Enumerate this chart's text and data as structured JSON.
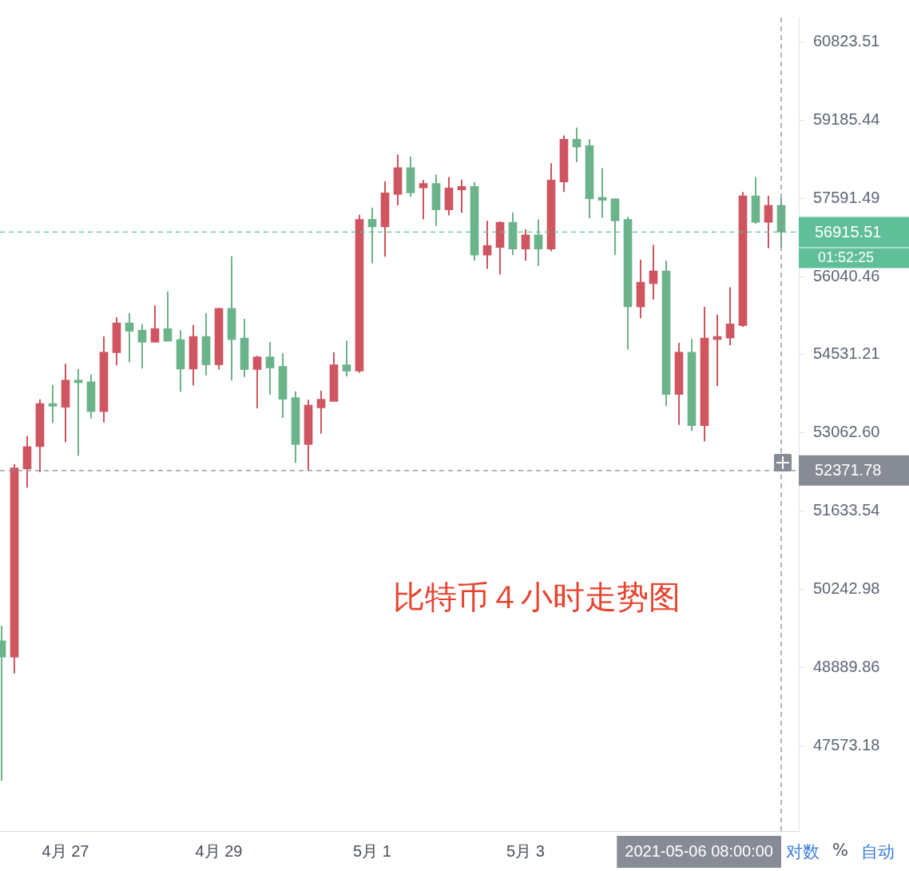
{
  "chart_data": {
    "type": "candlestick",
    "title": "比特币４小时走势图",
    "x": [
      "2021-04-26T04:00",
      "2021-04-26T08:00",
      "2021-04-26T12:00",
      "2021-04-26T16:00",
      "2021-04-26T20:00",
      "2021-04-27T00:00",
      "2021-04-27T04:00",
      "2021-04-27T08:00",
      "2021-04-27T12:00",
      "2021-04-27T16:00",
      "2021-04-27T20:00",
      "2021-04-28T00:00",
      "2021-04-28T04:00",
      "2021-04-28T08:00",
      "2021-04-28T12:00",
      "2021-04-28T16:00",
      "2021-04-28T20:00",
      "2021-04-29T00:00",
      "2021-04-29T04:00",
      "2021-04-29T08:00",
      "2021-04-29T12:00",
      "2021-04-29T16:00",
      "2021-04-29T20:00",
      "2021-04-30T00:00",
      "2021-04-30T04:00",
      "2021-04-30T08:00",
      "2021-04-30T12:00",
      "2021-04-30T16:00",
      "2021-04-30T20:00",
      "2021-05-01T00:00",
      "2021-05-01T04:00",
      "2021-05-01T08:00",
      "2021-05-01T12:00",
      "2021-05-01T16:00",
      "2021-05-01T20:00",
      "2021-05-02T00:00",
      "2021-05-02T04:00",
      "2021-05-02T08:00",
      "2021-05-02T12:00",
      "2021-05-02T16:00",
      "2021-05-02T20:00",
      "2021-05-03T00:00",
      "2021-05-03T04:00",
      "2021-05-03T08:00",
      "2021-05-03T12:00",
      "2021-05-03T16:00",
      "2021-05-03T20:00",
      "2021-05-04T00:00",
      "2021-05-04T04:00",
      "2021-05-04T08:00",
      "2021-05-04T12:00",
      "2021-05-04T16:00",
      "2021-05-04T20:00",
      "2021-05-05T00:00",
      "2021-05-05T04:00",
      "2021-05-05T08:00",
      "2021-05-05T12:00",
      "2021-05-05T16:00",
      "2021-05-05T20:00",
      "2021-05-06T00:00",
      "2021-05-06T04:00",
      "2021-05-06T08:00"
    ],
    "ohlc": [
      [
        49350,
        49610,
        47000,
        49070
      ],
      [
        49070,
        52490,
        48790,
        52420
      ],
      [
        52400,
        53010,
        52060,
        52810
      ],
      [
        52810,
        53690,
        52340,
        53610
      ],
      [
        53610,
        53960,
        53250,
        53560
      ],
      [
        53540,
        54360,
        52890,
        54050
      ],
      [
        54050,
        54260,
        52640,
        54000
      ],
      [
        54020,
        54160,
        53330,
        53460
      ],
      [
        53460,
        54880,
        53260,
        54580
      ],
      [
        54570,
        55250,
        54330,
        55140
      ],
      [
        55140,
        55330,
        54390,
        54980
      ],
      [
        55000,
        55120,
        54270,
        54770
      ],
      [
        54770,
        55480,
        54770,
        55030
      ],
      [
        55030,
        55750,
        54790,
        54790
      ],
      [
        54820,
        55000,
        53830,
        54260
      ],
      [
        54260,
        55100,
        53950,
        54880
      ],
      [
        54880,
        55330,
        54140,
        54340
      ],
      [
        54340,
        55430,
        54250,
        55420
      ],
      [
        55420,
        56440,
        54040,
        54820
      ],
      [
        54850,
        55220,
        54110,
        54250
      ],
      [
        54250,
        54510,
        53520,
        54490
      ],
      [
        54490,
        54770,
        53780,
        54280
      ],
      [
        54310,
        54560,
        53340,
        53690
      ],
      [
        53720,
        53840,
        52510,
        52850
      ],
      [
        52850,
        53680,
        52370,
        53580
      ],
      [
        53530,
        53850,
        53050,
        53690
      ],
      [
        53650,
        54580,
        53650,
        54340
      ],
      [
        54340,
        54800,
        54120,
        54220
      ],
      [
        54220,
        57260,
        54190,
        57170
      ],
      [
        57170,
        57400,
        56300,
        57020
      ],
      [
        57020,
        57930,
        56430,
        57700
      ],
      [
        57670,
        58480,
        57450,
        58210
      ],
      [
        58210,
        58440,
        57620,
        57700
      ],
      [
        57800,
        57960,
        57170,
        57890
      ],
      [
        57890,
        58070,
        57040,
        57360
      ],
      [
        57360,
        58020,
        57250,
        57800
      ],
      [
        57760,
        57970,
        57300,
        57830
      ],
      [
        57830,
        57920,
        56350,
        56460
      ],
      [
        56460,
        57140,
        56190,
        56650
      ],
      [
        56610,
        57130,
        56080,
        57110
      ],
      [
        57110,
        57310,
        56460,
        56580
      ],
      [
        56580,
        56970,
        56350,
        56860
      ],
      [
        56860,
        57170,
        56250,
        56580
      ],
      [
        56580,
        58300,
        56540,
        57960
      ],
      [
        57920,
        58870,
        57720,
        58790
      ],
      [
        58790,
        59030,
        58320,
        58630
      ],
      [
        58660,
        58790,
        57190,
        57580
      ],
      [
        57610,
        58200,
        57200,
        57550
      ],
      [
        57580,
        57590,
        56460,
        57140
      ],
      [
        57170,
        57220,
        54630,
        55450
      ],
      [
        55450,
        56370,
        55230,
        55930
      ],
      [
        55900,
        56660,
        55590,
        56150
      ],
      [
        56150,
        56350,
        53570,
        53780
      ],
      [
        53780,
        54760,
        53210,
        54580
      ],
      [
        54580,
        54830,
        53100,
        53200
      ],
      [
        53200,
        55450,
        52910,
        54850
      ],
      [
        54820,
        55300,
        53940,
        54880
      ],
      [
        54850,
        55830,
        54710,
        55120
      ],
      [
        55090,
        57720,
        55060,
        57640
      ],
      [
        57640,
        58020,
        57080,
        57110
      ],
      [
        57110,
        57640,
        56600,
        57450
      ],
      [
        57450,
        57610,
        56600,
        56915.51
      ]
    ],
    "colors": [
      "#6bb38a",
      "#cf5560",
      "#cf5560",
      "#cf5560",
      "#6bb38a",
      "#cf5560",
      "#6bb38a",
      "#6bb38a",
      "#cf5560",
      "#cf5560",
      "#6bb38a",
      "#6bb38a",
      "#cf5560",
      "#6bb38a",
      "#6bb38a",
      "#cf5560",
      "#6bb38a",
      "#cf5560",
      "#6bb38a",
      "#6bb38a",
      "#cf5560",
      "#6bb38a",
      "#6bb38a",
      "#6bb38a",
      "#cf5560",
      "#cf5560",
      "#cf5560",
      "#6bb38a",
      "#cf5560",
      "#6bb38a",
      "#cf5560",
      "#cf5560",
      "#6bb38a",
      "#cf5560",
      "#6bb38a",
      "#cf5560",
      "#cf5560",
      "#6bb38a",
      "#cf5560",
      "#cf5560",
      "#6bb38a",
      "#cf5560",
      "#6bb38a",
      "#cf5560",
      "#cf5560",
      "#6bb38a",
      "#6bb38a",
      "#6bb38a",
      "#6bb38a",
      "#6bb38a",
      "#cf5560",
      "#cf5560",
      "#6bb38a",
      "#cf5560",
      "#6bb38a",
      "#cf5560",
      "#cf5560",
      "#cf5560",
      "#cf5560",
      "#6bb38a",
      "#cf5560",
      "#6bb38a"
    ],
    "xlim": [
      "2021-04-26T03:30",
      "2021-05-06T13:30"
    ],
    "xticks": [
      {
        "value": "2021-04-27",
        "label": "4月 27"
      },
      {
        "value": "2021-04-29",
        "label": "4月 29"
      },
      {
        "value": "2021-05-01",
        "label": "5月 1"
      },
      {
        "value": "2021-05-03",
        "label": "5月 3"
      }
    ],
    "log": true,
    "ylim": [
      46180,
      61340
    ],
    "yticks": [
      60823.51,
      59185.44,
      57591.49,
      56040.46,
      54531.21,
      {
        "value": 53062.6,
        "label": "53062.60"
      },
      51633.54,
      50242.98,
      48889.86,
      47573.18
    ],
    "ref_lines": [
      {
        "axis": "y",
        "value": 56915.51,
        "label": "56915.51",
        "color": "#5fbf98",
        "line_style": "dashed"
      },
      {
        "axis": "y",
        "value": 52371.78,
        "label": "52371.78",
        "color": "#868b95",
        "line_style": "dashed"
      },
      {
        "axis": "x",
        "value": "2021-05-06T08:00",
        "label": "2021-05-06 08:00:00",
        "color": "#868b95",
        "line_style": "dashed"
      }
    ],
    "annotations": [
      "01:52:25",
      "对数",
      "%",
      "自动"
    ],
    "grid": false,
    "legend": false
  }
}
